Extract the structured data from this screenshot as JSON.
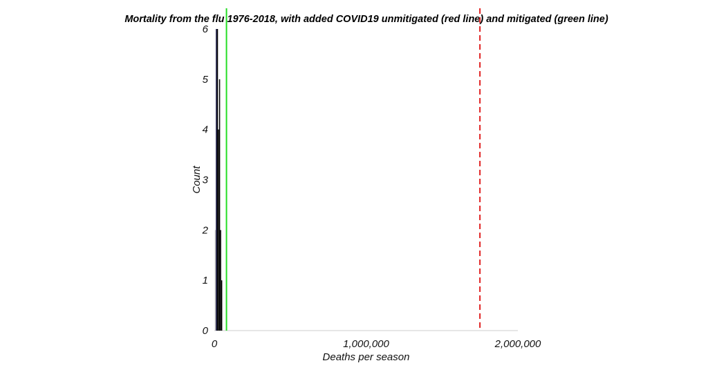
{
  "chart_data": {
    "type": "bar",
    "title": "Mortality from the flu 1976-2018, with added COVID19 unmitigated (red line) and mitigated (green line)",
    "xlabel": "Deaths per season",
    "ylabel": "Count",
    "xlim": [
      0,
      2000000
    ],
    "ylim": [
      0,
      6
    ],
    "x_ticks": [
      {
        "value": 0,
        "label": "0"
      },
      {
        "value": 1000000,
        "label": "1,000,000"
      },
      {
        "value": 2000000,
        "label": "2,000,000"
      }
    ],
    "y_ticks": [
      {
        "value": 0,
        "label": "0"
      },
      {
        "value": 1,
        "label": "1"
      },
      {
        "value": 2,
        "label": "2"
      },
      {
        "value": 3,
        "label": "3"
      },
      {
        "value": 4,
        "label": "4"
      },
      {
        "value": 5,
        "label": "5"
      },
      {
        "value": 6,
        "label": "6"
      }
    ],
    "bins": [
      {
        "x0": 3000,
        "x1": 10000,
        "count": 2,
        "color": "#c8c8c8"
      },
      {
        "x0": 10000,
        "x1": 17000,
        "count": 6,
        "color": "#0a0a3a"
      },
      {
        "x0": 17000,
        "x1": 24000,
        "count": 6,
        "color": "#000000"
      },
      {
        "x0": 24000,
        "x1": 31000,
        "count": 4,
        "color": "#000000"
      },
      {
        "x0": 31000,
        "x1": 38000,
        "count": 5,
        "color": "#000000"
      },
      {
        "x0": 38000,
        "x1": 45000,
        "count": 2,
        "color": "#000000"
      },
      {
        "x0": 45000,
        "x1": 52000,
        "count": 1,
        "color": "#000000"
      }
    ],
    "reference_lines": [
      {
        "value": 80000,
        "color": "#22dd22",
        "style": "solid"
      },
      {
        "value": 1750000,
        "color": "#e02020",
        "style": "dashed"
      }
    ],
    "grid": false,
    "axis_color": "#cccccc"
  }
}
